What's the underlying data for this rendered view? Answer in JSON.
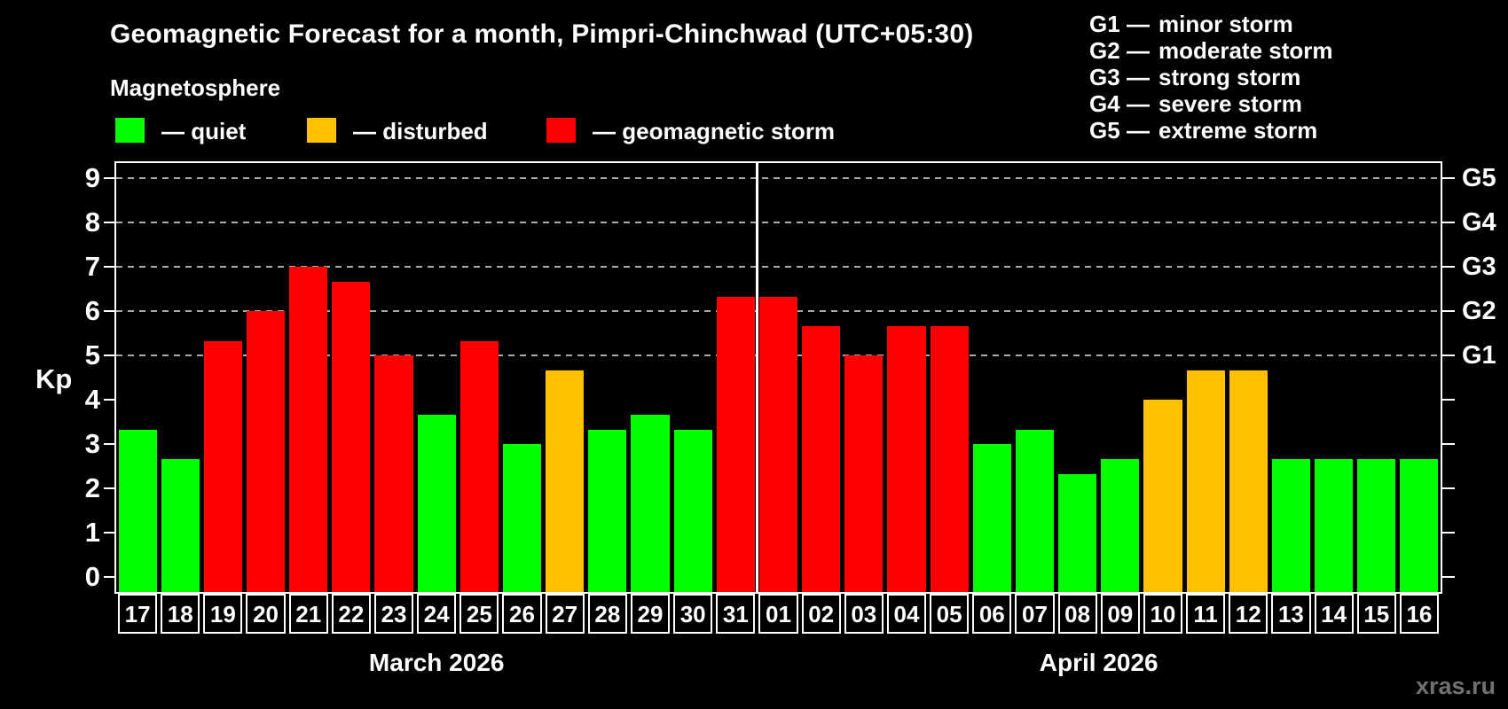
{
  "title": "Geomagnetic Forecast for a month, Pimpri-Chinchwad (UTC+05:30)",
  "subtitle": "Magnetosphere",
  "y_axis_label": "Kp",
  "watermark": "xras.ru",
  "legend": {
    "items": [
      {
        "key": "quiet",
        "color": "#00ff00",
        "label": "— quiet"
      },
      {
        "key": "disturbed",
        "color": "#ffc000",
        "label": "— disturbed"
      },
      {
        "key": "storm",
        "color": "#ff0000",
        "label": "— geomagnetic storm"
      }
    ]
  },
  "storm_scale": {
    "items": [
      {
        "code": "G1",
        "dash": "—",
        "label": "minor storm",
        "kp": 5
      },
      {
        "code": "G2",
        "dash": "—",
        "label": "moderate storm",
        "kp": 6
      },
      {
        "code": "G3",
        "dash": "—",
        "label": "strong storm",
        "kp": 7
      },
      {
        "code": "G4",
        "dash": "—",
        "label": "severe storm",
        "kp": 8
      },
      {
        "code": "G5",
        "dash": "—",
        "label": "extreme storm",
        "kp": 9
      }
    ]
  },
  "chart_data": {
    "type": "bar",
    "title": "Geomagnetic Forecast for a month, Pimpri-Chinchwad (UTC+05:30)",
    "ylabel": "Kp",
    "ylim": [
      0,
      9
    ],
    "yticks": [
      0,
      1,
      2,
      3,
      4,
      5,
      6,
      7,
      8,
      9
    ],
    "gridlines_at": [
      5,
      6,
      7,
      8,
      9
    ],
    "grid_style": "dashed",
    "legend_position": "top",
    "colors": {
      "quiet": "#00ff00",
      "disturbed": "#ffc000",
      "storm": "#ff0000"
    },
    "months": [
      {
        "label": "March 2026",
        "days": 15
      },
      {
        "label": "April 2026",
        "days": 16
      }
    ],
    "bars": [
      {
        "month": "March",
        "day": "17",
        "kp": 3.33,
        "status": "quiet"
      },
      {
        "month": "March",
        "day": "18",
        "kp": 2.67,
        "status": "quiet"
      },
      {
        "month": "March",
        "day": "19",
        "kp": 5.33,
        "status": "storm"
      },
      {
        "month": "March",
        "day": "20",
        "kp": 6.0,
        "status": "storm"
      },
      {
        "month": "March",
        "day": "21",
        "kp": 7.0,
        "status": "storm"
      },
      {
        "month": "March",
        "day": "22",
        "kp": 6.67,
        "status": "storm"
      },
      {
        "month": "March",
        "day": "23",
        "kp": 5.0,
        "status": "storm"
      },
      {
        "month": "March",
        "day": "24",
        "kp": 3.67,
        "status": "quiet"
      },
      {
        "month": "March",
        "day": "25",
        "kp": 5.33,
        "status": "storm"
      },
      {
        "month": "March",
        "day": "26",
        "kp": 3.0,
        "status": "quiet"
      },
      {
        "month": "March",
        "day": "27",
        "kp": 4.67,
        "status": "disturbed"
      },
      {
        "month": "March",
        "day": "28",
        "kp": 3.33,
        "status": "quiet"
      },
      {
        "month": "March",
        "day": "29",
        "kp": 3.67,
        "status": "quiet"
      },
      {
        "month": "March",
        "day": "30",
        "kp": 3.33,
        "status": "quiet"
      },
      {
        "month": "March",
        "day": "31",
        "kp": 6.33,
        "status": "storm"
      },
      {
        "month": "April",
        "day": "01",
        "kp": 6.33,
        "status": "storm"
      },
      {
        "month": "April",
        "day": "02",
        "kp": 5.67,
        "status": "storm"
      },
      {
        "month": "April",
        "day": "03",
        "kp": 5.0,
        "status": "storm"
      },
      {
        "month": "April",
        "day": "04",
        "kp": 5.67,
        "status": "storm"
      },
      {
        "month": "April",
        "day": "05",
        "kp": 5.67,
        "status": "storm"
      },
      {
        "month": "April",
        "day": "06",
        "kp": 3.0,
        "status": "quiet"
      },
      {
        "month": "April",
        "day": "07",
        "kp": 3.33,
        "status": "quiet"
      },
      {
        "month": "April",
        "day": "08",
        "kp": 2.33,
        "status": "quiet"
      },
      {
        "month": "April",
        "day": "09",
        "kp": 2.67,
        "status": "quiet"
      },
      {
        "month": "April",
        "day": "10",
        "kp": 4.0,
        "status": "disturbed"
      },
      {
        "month": "April",
        "day": "11",
        "kp": 4.67,
        "status": "disturbed"
      },
      {
        "month": "April",
        "day": "12",
        "kp": 4.67,
        "status": "disturbed"
      },
      {
        "month": "April",
        "day": "13",
        "kp": 2.67,
        "status": "quiet"
      },
      {
        "month": "April",
        "day": "14",
        "kp": 2.67,
        "status": "quiet"
      },
      {
        "month": "April",
        "day": "15",
        "kp": 2.67,
        "status": "quiet"
      },
      {
        "month": "April",
        "day": "16",
        "kp": 2.67,
        "status": "quiet"
      }
    ]
  }
}
